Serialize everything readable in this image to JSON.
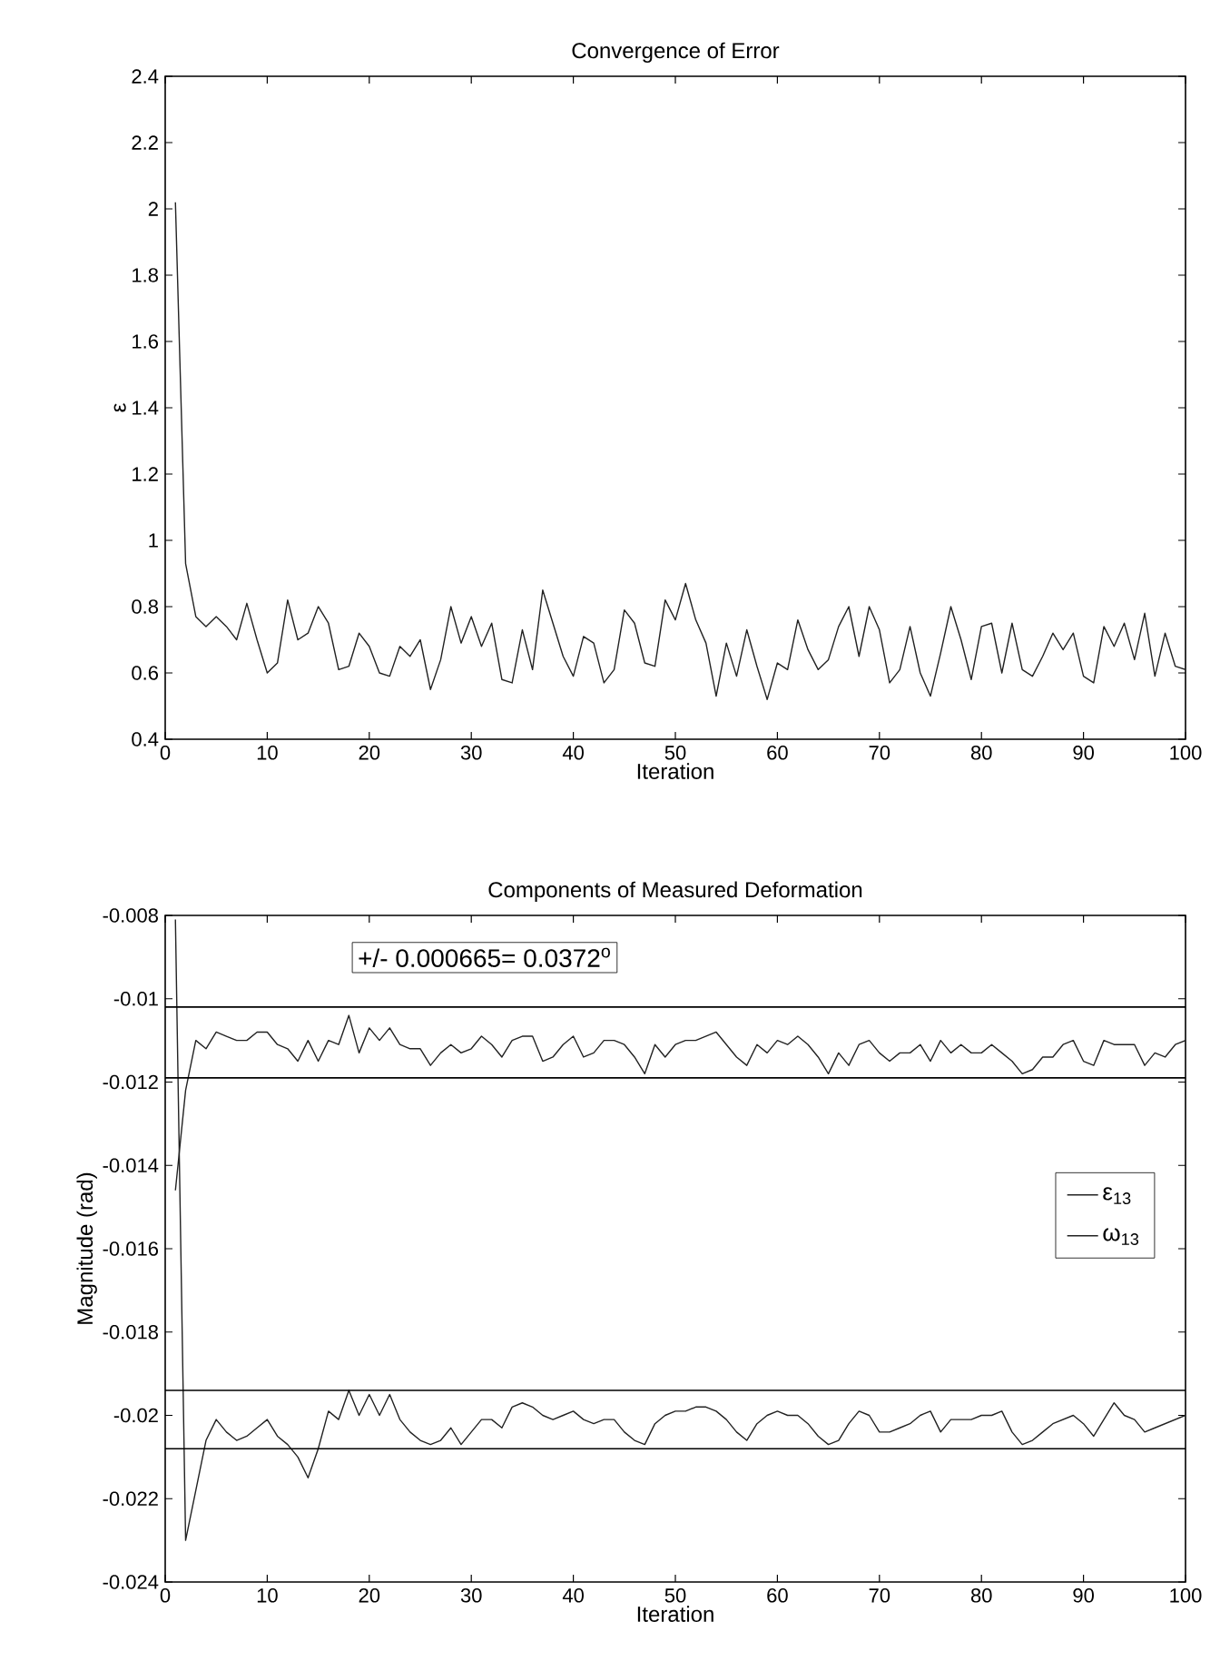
{
  "chart_data": [
    {
      "type": "line",
      "title": "Convergence of Error",
      "xlabel": "Iteration",
      "ylabel": "ε",
      "x": [
        1,
        2,
        3,
        4,
        5,
        6,
        7,
        8,
        9,
        10,
        11,
        12,
        13,
        14,
        15,
        16,
        17,
        18,
        19,
        20,
        21,
        22,
        23,
        24,
        25,
        26,
        27,
        28,
        29,
        30,
        31,
        32,
        33,
        34,
        35,
        36,
        37,
        38,
        39,
        40,
        41,
        42,
        43,
        44,
        45,
        46,
        47,
        48,
        49,
        50,
        51,
        52,
        53,
        54,
        55,
        56,
        57,
        58,
        59,
        60,
        61,
        62,
        63,
        64,
        65,
        66,
        67,
        68,
        69,
        70,
        71,
        72,
        73,
        74,
        75,
        76,
        77,
        78,
        79,
        80,
        81,
        82,
        83,
        84,
        85,
        86,
        87,
        88,
        89,
        90,
        91,
        92,
        93,
        94,
        95,
        96,
        97,
        98,
        99,
        100
      ],
      "series": [
        {
          "color": "#222222",
          "values": [
            2.02,
            0.93,
            0.77,
            0.74,
            0.77,
            0.74,
            0.7,
            0.81,
            0.7,
            0.6,
            0.63,
            0.82,
            0.7,
            0.72,
            0.8,
            0.75,
            0.61,
            0.62,
            0.72,
            0.68,
            0.6,
            0.59,
            0.68,
            0.65,
            0.7,
            0.55,
            0.64,
            0.8,
            0.69,
            0.77,
            0.68,
            0.75,
            0.58,
            0.57,
            0.73,
            0.61,
            0.85,
            0.75,
            0.65,
            0.59,
            0.71,
            0.69,
            0.57,
            0.61,
            0.79,
            0.75,
            0.63,
            0.62,
            0.82,
            0.76,
            0.87,
            0.76,
            0.69,
            0.53,
            0.69,
            0.59,
            0.73,
            0.62,
            0.52,
            0.63,
            0.61,
            0.76,
            0.67,
            0.61,
            0.64,
            0.74,
            0.8,
            0.65,
            0.8,
            0.73,
            0.57,
            0.61,
            0.74,
            0.6,
            0.53,
            0.66,
            0.8,
            0.7,
            0.58,
            0.74,
            0.75,
            0.6,
            0.75,
            0.61,
            0.59,
            0.65,
            0.72,
            0.67,
            0.72,
            0.59,
            0.57,
            0.74,
            0.68,
            0.75,
            0.64,
            0.78,
            0.59,
            0.72,
            0.62,
            0.61
          ]
        }
      ],
      "xlim": [
        0,
        100
      ],
      "xticks": [
        0,
        10,
        20,
        30,
        40,
        50,
        60,
        70,
        80,
        90,
        100
      ],
      "ylim": [
        0.4,
        2.4
      ],
      "yticks": [
        0.4,
        0.6,
        0.8,
        1,
        1.2,
        1.4,
        1.6,
        1.8,
        2,
        2.2,
        2.4
      ]
    },
    {
      "type": "line",
      "title": "Components of Measured Deformation",
      "xlabel": "Iteration",
      "ylabel": "Magnitude (rad)",
      "x": [
        1,
        2,
        3,
        4,
        5,
        6,
        7,
        8,
        9,
        10,
        11,
        12,
        13,
        14,
        15,
        16,
        17,
        18,
        19,
        20,
        21,
        22,
        23,
        24,
        25,
        26,
        27,
        28,
        29,
        30,
        31,
        32,
        33,
        34,
        35,
        36,
        37,
        38,
        39,
        40,
        41,
        42,
        43,
        44,
        45,
        46,
        47,
        48,
        49,
        50,
        51,
        52,
        53,
        54,
        55,
        56,
        57,
        58,
        59,
        60,
        61,
        62,
        63,
        64,
        65,
        66,
        67,
        68,
        69,
        70,
        71,
        72,
        73,
        74,
        75,
        76,
        77,
        78,
        79,
        80,
        81,
        82,
        83,
        84,
        85,
        86,
        87,
        88,
        89,
        90,
        91,
        92,
        93,
        94,
        95,
        96,
        97,
        98,
        99,
        100
      ],
      "series": [
        {
          "name": "ε$_{13}$",
          "color": "#222222",
          "values": [
            -0.0146,
            -0.0122,
            -0.011,
            -0.0112,
            -0.0108,
            -0.0109,
            -0.011,
            -0.011,
            -0.0108,
            -0.0108,
            -0.0111,
            -0.0112,
            -0.0115,
            -0.011,
            -0.0115,
            -0.011,
            -0.0111,
            -0.0104,
            -0.0113,
            -0.0107,
            -0.011,
            -0.0107,
            -0.0111,
            -0.0112,
            -0.0112,
            -0.0116,
            -0.0113,
            -0.0111,
            -0.0113,
            -0.0112,
            -0.0109,
            -0.0111,
            -0.0114,
            -0.011,
            -0.0109,
            -0.0109,
            -0.0115,
            -0.0114,
            -0.0111,
            -0.0109,
            -0.0114,
            -0.0113,
            -0.011,
            -0.011,
            -0.0111,
            -0.0114,
            -0.0118,
            -0.0111,
            -0.0114,
            -0.0111,
            -0.011,
            -0.011,
            -0.0109,
            -0.0108,
            -0.0111,
            -0.0114,
            -0.0116,
            -0.0111,
            -0.0113,
            -0.011,
            -0.0111,
            -0.0109,
            -0.0111,
            -0.0114,
            -0.0118,
            -0.0113,
            -0.0116,
            -0.0111,
            -0.011,
            -0.0113,
            -0.0115,
            -0.0113,
            -0.0113,
            -0.0111,
            -0.0115,
            -0.011,
            -0.0113,
            -0.0111,
            -0.0113,
            -0.0113,
            -0.0111,
            -0.0113,
            -0.0115,
            -0.0118,
            -0.0117,
            -0.0114,
            -0.0114,
            -0.0111,
            -0.011,
            -0.0115,
            -0.0116,
            -0.011,
            -0.0111,
            -0.0111,
            -0.0111,
            -0.0116,
            -0.0113,
            -0.0114,
            -0.0111,
            -0.011
          ]
        },
        {
          "name": "ω$_{13}$",
          "color": "#222222",
          "values": [
            -0.0081,
            -0.023,
            -0.0218,
            -0.0206,
            -0.0201,
            -0.0204,
            -0.0206,
            -0.0205,
            -0.0203,
            -0.0201,
            -0.0205,
            -0.0207,
            -0.021,
            -0.0215,
            -0.0208,
            -0.0199,
            -0.0201,
            -0.0194,
            -0.02,
            -0.0195,
            -0.02,
            -0.0195,
            -0.0201,
            -0.0204,
            -0.0206,
            -0.0207,
            -0.0206,
            -0.0203,
            -0.0207,
            -0.0204,
            -0.0201,
            -0.0201,
            -0.0203,
            -0.0198,
            -0.0197,
            -0.0198,
            -0.02,
            -0.0201,
            -0.02,
            -0.0199,
            -0.0201,
            -0.0202,
            -0.0201,
            -0.0201,
            -0.0204,
            -0.0206,
            -0.0207,
            -0.0202,
            -0.02,
            -0.0199,
            -0.0199,
            -0.0198,
            -0.0198,
            -0.0199,
            -0.0201,
            -0.0204,
            -0.0206,
            -0.0202,
            -0.02,
            -0.0199,
            -0.02,
            -0.02,
            -0.0202,
            -0.0205,
            -0.0207,
            -0.0206,
            -0.0202,
            -0.0199,
            -0.02,
            -0.0204,
            -0.0204,
            -0.0203,
            -0.0202,
            -0.02,
            -0.0199,
            -0.0204,
            -0.0201,
            -0.0201,
            -0.0201,
            -0.02,
            -0.02,
            -0.0199,
            -0.0204,
            -0.0207,
            -0.0206,
            -0.0204,
            -0.0202,
            -0.0201,
            -0.02,
            -0.0202,
            -0.0205,
            -0.0201,
            -0.0197,
            -0.02,
            -0.0201,
            -0.0204,
            -0.0203,
            -0.0202,
            -0.0201,
            -0.02
          ]
        }
      ],
      "ref_lines": [
        {
          "axis": "y",
          "value": -0.0102
        },
        {
          "axis": "y",
          "value": -0.0119
        },
        {
          "axis": "y",
          "value": -0.0194
        },
        {
          "axis": "y",
          "value": -0.0208
        }
      ],
      "annotations": [
        "+/- 0.000665= 0.0372$^{o}$"
      ],
      "legend": "right",
      "xlim": [
        0,
        100
      ],
      "xticks": [
        0,
        10,
        20,
        30,
        40,
        50,
        60,
        70,
        80,
        90,
        100
      ],
      "ylim": [
        -0.024,
        -0.008
      ],
      "yticks": [
        -0.024,
        -0.022,
        -0.02,
        -0.018,
        -0.016,
        -0.014,
        -0.012,
        -0.01,
        -0.008
      ]
    }
  ]
}
